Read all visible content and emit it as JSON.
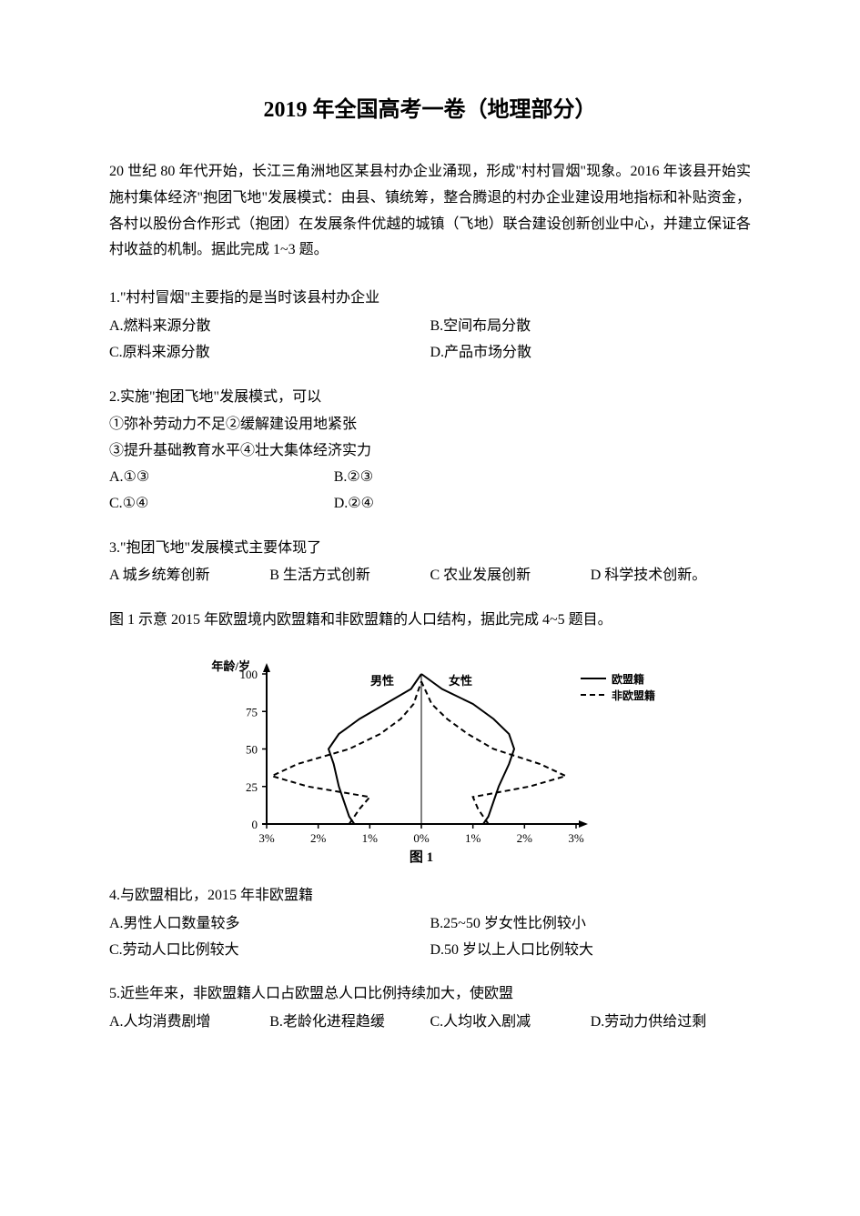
{
  "title": "2019 年全国高考一卷（地理部分）",
  "intro": "20 世纪 80 年代开始，长江三角洲地区某县村办企业涌现，形成\"村村冒烟\"现象。2016 年该县开始实施村集体经济\"抱团飞地\"发展模式：由县、镇统筹，整合腾退的村办企业建设用地指标和补贴资金，各村以股份合作形式（抱团）在发展条件优越的城镇（飞地）联合建设创新创业中心，并建立保证各村收益的机制。据此完成 1~3 题。",
  "q1": {
    "stem": "1.\"村村冒烟\"主要指的是当时该县村办企业",
    "a": "A.燃料来源分散",
    "b": "B.空间布局分散",
    "c": "C.原料来源分散",
    "d": "D.产品市场分散"
  },
  "q2": {
    "stem": "2.实施\"抱团飞地\"发展模式，可以",
    "line1": "①弥补劳动力不足②缓解建设用地紧张",
    "line2": "③提升基础教育水平④壮大集体经济实力",
    "a": "A.①③",
    "b": "B.②③",
    "c": "C.①④",
    "d": "D.②④"
  },
  "q3": {
    "stem": "3.\"抱团飞地\"发展模式主要体现了",
    "a": "A 城乡统筹创新",
    "b": "B 生活方式创新",
    "c": "C 农业发展创新",
    "d": "D 科学技术创新。"
  },
  "intro2": "图 1 示意 2015 年欧盟境内欧盟籍和非欧盟籍的人口结构，据此完成 4~5 题目。",
  "chart": {
    "type": "population-pyramid",
    "y_label": "年龄/岁",
    "y_ticks": [
      0,
      25,
      50,
      75,
      100
    ],
    "x_ticks_left": [
      "3%",
      "2%",
      "1%",
      "0%"
    ],
    "x_ticks_right": [
      "1%",
      "2%",
      "3%"
    ],
    "male_label": "男性",
    "female_label": "女性",
    "legend_solid": "欧盟籍",
    "legend_dashed": "非欧盟籍",
    "caption": "图 1",
    "colors": {
      "line": "#000000",
      "background": "#ffffff",
      "text": "#000000"
    },
    "line_width_solid": 2,
    "line_width_dashed": 2,
    "dash_pattern": "6,4",
    "solid_male": [
      {
        "age": 0,
        "pct": 1.3
      },
      {
        "age": 5,
        "pct": 1.4
      },
      {
        "age": 15,
        "pct": 1.5
      },
      {
        "age": 25,
        "pct": 1.6
      },
      {
        "age": 40,
        "pct": 1.7
      },
      {
        "age": 50,
        "pct": 1.8
      },
      {
        "age": 60,
        "pct": 1.6
      },
      {
        "age": 70,
        "pct": 1.2
      },
      {
        "age": 80,
        "pct": 0.7
      },
      {
        "age": 90,
        "pct": 0.2
      },
      {
        "age": 100,
        "pct": 0.0
      }
    ],
    "solid_female": [
      {
        "age": 0,
        "pct": 1.2
      },
      {
        "age": 5,
        "pct": 1.3
      },
      {
        "age": 15,
        "pct": 1.4
      },
      {
        "age": 25,
        "pct": 1.5
      },
      {
        "age": 40,
        "pct": 1.7
      },
      {
        "age": 50,
        "pct": 1.8
      },
      {
        "age": 60,
        "pct": 1.7
      },
      {
        "age": 70,
        "pct": 1.4
      },
      {
        "age": 80,
        "pct": 1.0
      },
      {
        "age": 90,
        "pct": 0.4
      },
      {
        "age": 100,
        "pct": 0.0
      }
    ],
    "dashed_male": [
      {
        "age": 0,
        "pct": 1.4
      },
      {
        "age": 10,
        "pct": 1.2
      },
      {
        "age": 18,
        "pct": 1.0
      },
      {
        "age": 25,
        "pct": 2.2
      },
      {
        "age": 32,
        "pct": 2.9
      },
      {
        "age": 40,
        "pct": 2.4
      },
      {
        "age": 50,
        "pct": 1.4
      },
      {
        "age": 60,
        "pct": 0.8
      },
      {
        "age": 70,
        "pct": 0.4
      },
      {
        "age": 80,
        "pct": 0.15
      },
      {
        "age": 95,
        "pct": 0.0
      }
    ],
    "dashed_female": [
      {
        "age": 0,
        "pct": 1.3
      },
      {
        "age": 10,
        "pct": 1.1
      },
      {
        "age": 18,
        "pct": 1.0
      },
      {
        "age": 25,
        "pct": 2.1
      },
      {
        "age": 32,
        "pct": 2.8
      },
      {
        "age": 40,
        "pct": 2.3
      },
      {
        "age": 50,
        "pct": 1.4
      },
      {
        "age": 60,
        "pct": 0.9
      },
      {
        "age": 70,
        "pct": 0.5
      },
      {
        "age": 80,
        "pct": 0.2
      },
      {
        "age": 95,
        "pct": 0.0
      }
    ]
  },
  "q4": {
    "stem": "4.与欧盟相比，2015 年非欧盟籍",
    "a": "A.男性人口数量较多",
    "b": "B.25~50 岁女性比例较小",
    "c": "C.劳动人口比例较大",
    "d": "D.50 岁以上人口比例较大"
  },
  "q5": {
    "stem": "5.近些年来，非欧盟籍人口占欧盟总人口比例持续加大，使欧盟",
    "a": "A.人均消费剧增",
    "b": "B.老龄化进程趋缓",
    "c": "C.人均收入剧减",
    "d": "D.劳动力供给过剩"
  }
}
